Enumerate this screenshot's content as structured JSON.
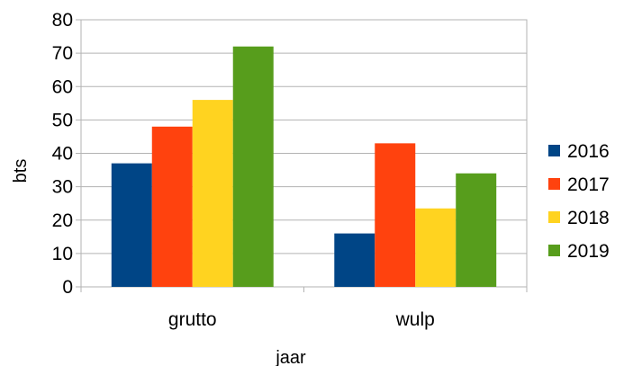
{
  "chart_data": {
    "type": "bar",
    "title": "",
    "xlabel": "jaar",
    "ylabel": "bts",
    "categories": [
      "grutto",
      "wulp"
    ],
    "series": [
      {
        "name": "2016",
        "values": [
          37,
          16
        ],
        "color": "#004586"
      },
      {
        "name": "2017",
        "values": [
          48,
          43
        ],
        "color": "#ff420e"
      },
      {
        "name": "2018",
        "values": [
          56,
          23.5
        ],
        "color": "#ffd320"
      },
      {
        "name": "2019",
        "values": [
          72,
          34
        ],
        "color": "#579d1c"
      }
    ],
    "ylim": [
      0,
      80
    ],
    "yticks": [
      0,
      10,
      20,
      30,
      40,
      50,
      60,
      70,
      80
    ],
    "grid": true,
    "legend_position": "right"
  }
}
